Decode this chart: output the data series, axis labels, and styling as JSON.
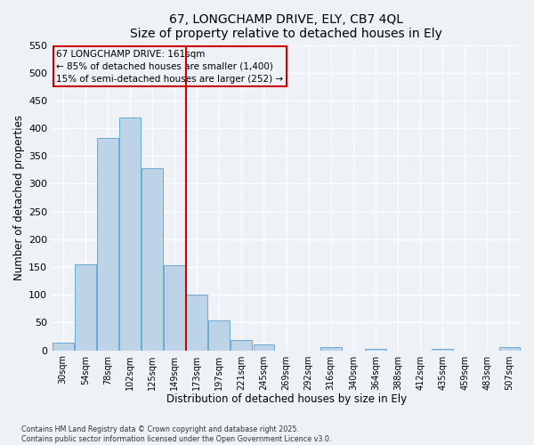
{
  "title1": "67, LONGCHAMP DRIVE, ELY, CB7 4QL",
  "title2": "Size of property relative to detached houses in Ely",
  "xlabel": "Distribution of detached houses by size in Ely",
  "ylabel": "Number of detached properties",
  "bar_labels": [
    "30sqm",
    "54sqm",
    "78sqm",
    "102sqm",
    "125sqm",
    "149sqm",
    "173sqm",
    "197sqm",
    "221sqm",
    "245sqm",
    "269sqm",
    "292sqm",
    "316sqm",
    "340sqm",
    "364sqm",
    "388sqm",
    "412sqm",
    "435sqm",
    "459sqm",
    "483sqm",
    "507sqm"
  ],
  "bar_values": [
    13,
    155,
    383,
    420,
    328,
    153,
    100,
    54,
    18,
    10,
    0,
    0,
    5,
    0,
    3,
    0,
    0,
    2,
    0,
    0,
    5
  ],
  "bar_color": "#bdd4e8",
  "bar_edge_color": "#6aaad4",
  "ylim": [
    0,
    550
  ],
  "yticks": [
    0,
    50,
    100,
    150,
    200,
    250,
    300,
    350,
    400,
    450,
    500,
    550
  ],
  "property_line_x": 5.5,
  "property_line_color": "#cc0000",
  "annotation_line1": "67 LONGCHAMP DRIVE: 161sqm",
  "annotation_line2": "← 85% of detached houses are smaller (1,400)",
  "annotation_line3": "15% of semi-detached houses are larger (252) →",
  "annotation_box_color": "#cc0000",
  "background_color": "#eef2f7",
  "grid_color": "#ffffff",
  "footer1": "Contains HM Land Registry data © Crown copyright and database right 2025.",
  "footer2": "Contains public sector information licensed under the Open Government Licence v3.0."
}
